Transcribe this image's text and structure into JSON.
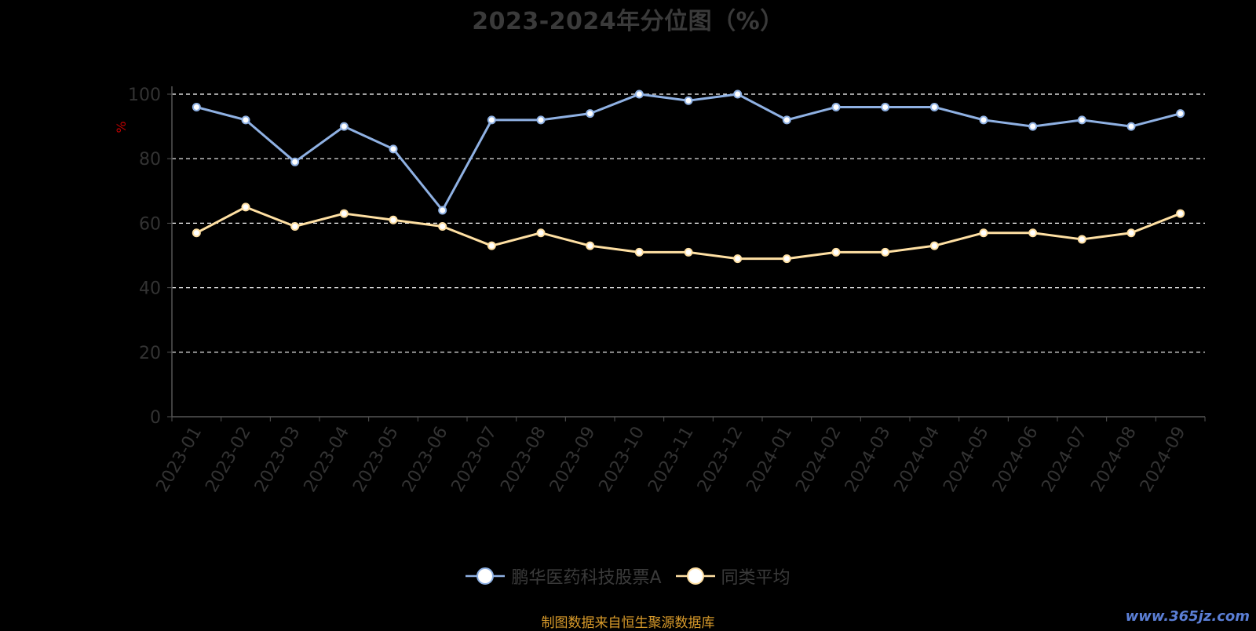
{
  "chart_data": {
    "type": "line",
    "title": "2023-2024年分位图（%）",
    "ylabel": "%",
    "xlabel": "",
    "ylim": [
      0,
      100
    ],
    "yticks": [
      0,
      20,
      40,
      60,
      80,
      100
    ],
    "grid": true,
    "legend_position": "bottom",
    "categories": [
      "2023-01",
      "2023-02",
      "2023-03",
      "2023-04",
      "2023-05",
      "2023-06",
      "2023-07",
      "2023-08",
      "2023-09",
      "2023-10",
      "2023-11",
      "2023-12",
      "2024-01",
      "2024-02",
      "2024-03",
      "2024-04",
      "2024-05",
      "2024-06",
      "2024-07",
      "2024-08",
      "2024-09"
    ],
    "series": [
      {
        "name": "鹏华医药科技股票A",
        "color": "#8fb1e3",
        "values": [
          96,
          92,
          79,
          90,
          83,
          64,
          92,
          92,
          94,
          100,
          98,
          100,
          92,
          96,
          96,
          96,
          92,
          90,
          92,
          90,
          94
        ]
      },
      {
        "name": "同类平均",
        "color": "#ffe0a3",
        "values": [
          57,
          65,
          59,
          63,
          61,
          59,
          53,
          57,
          53,
          51,
          51,
          49,
          49,
          51,
          51,
          53,
          57,
          57,
          55,
          57,
          63
        ]
      }
    ]
  },
  "colors": {
    "ylabel": "#c00000",
    "axis": "#555555",
    "grid": "#ffffff",
    "tick_text": "#333333"
  },
  "source_text": "制图数据来自恒生聚源数据库",
  "watermark": "www.365jz.com"
}
